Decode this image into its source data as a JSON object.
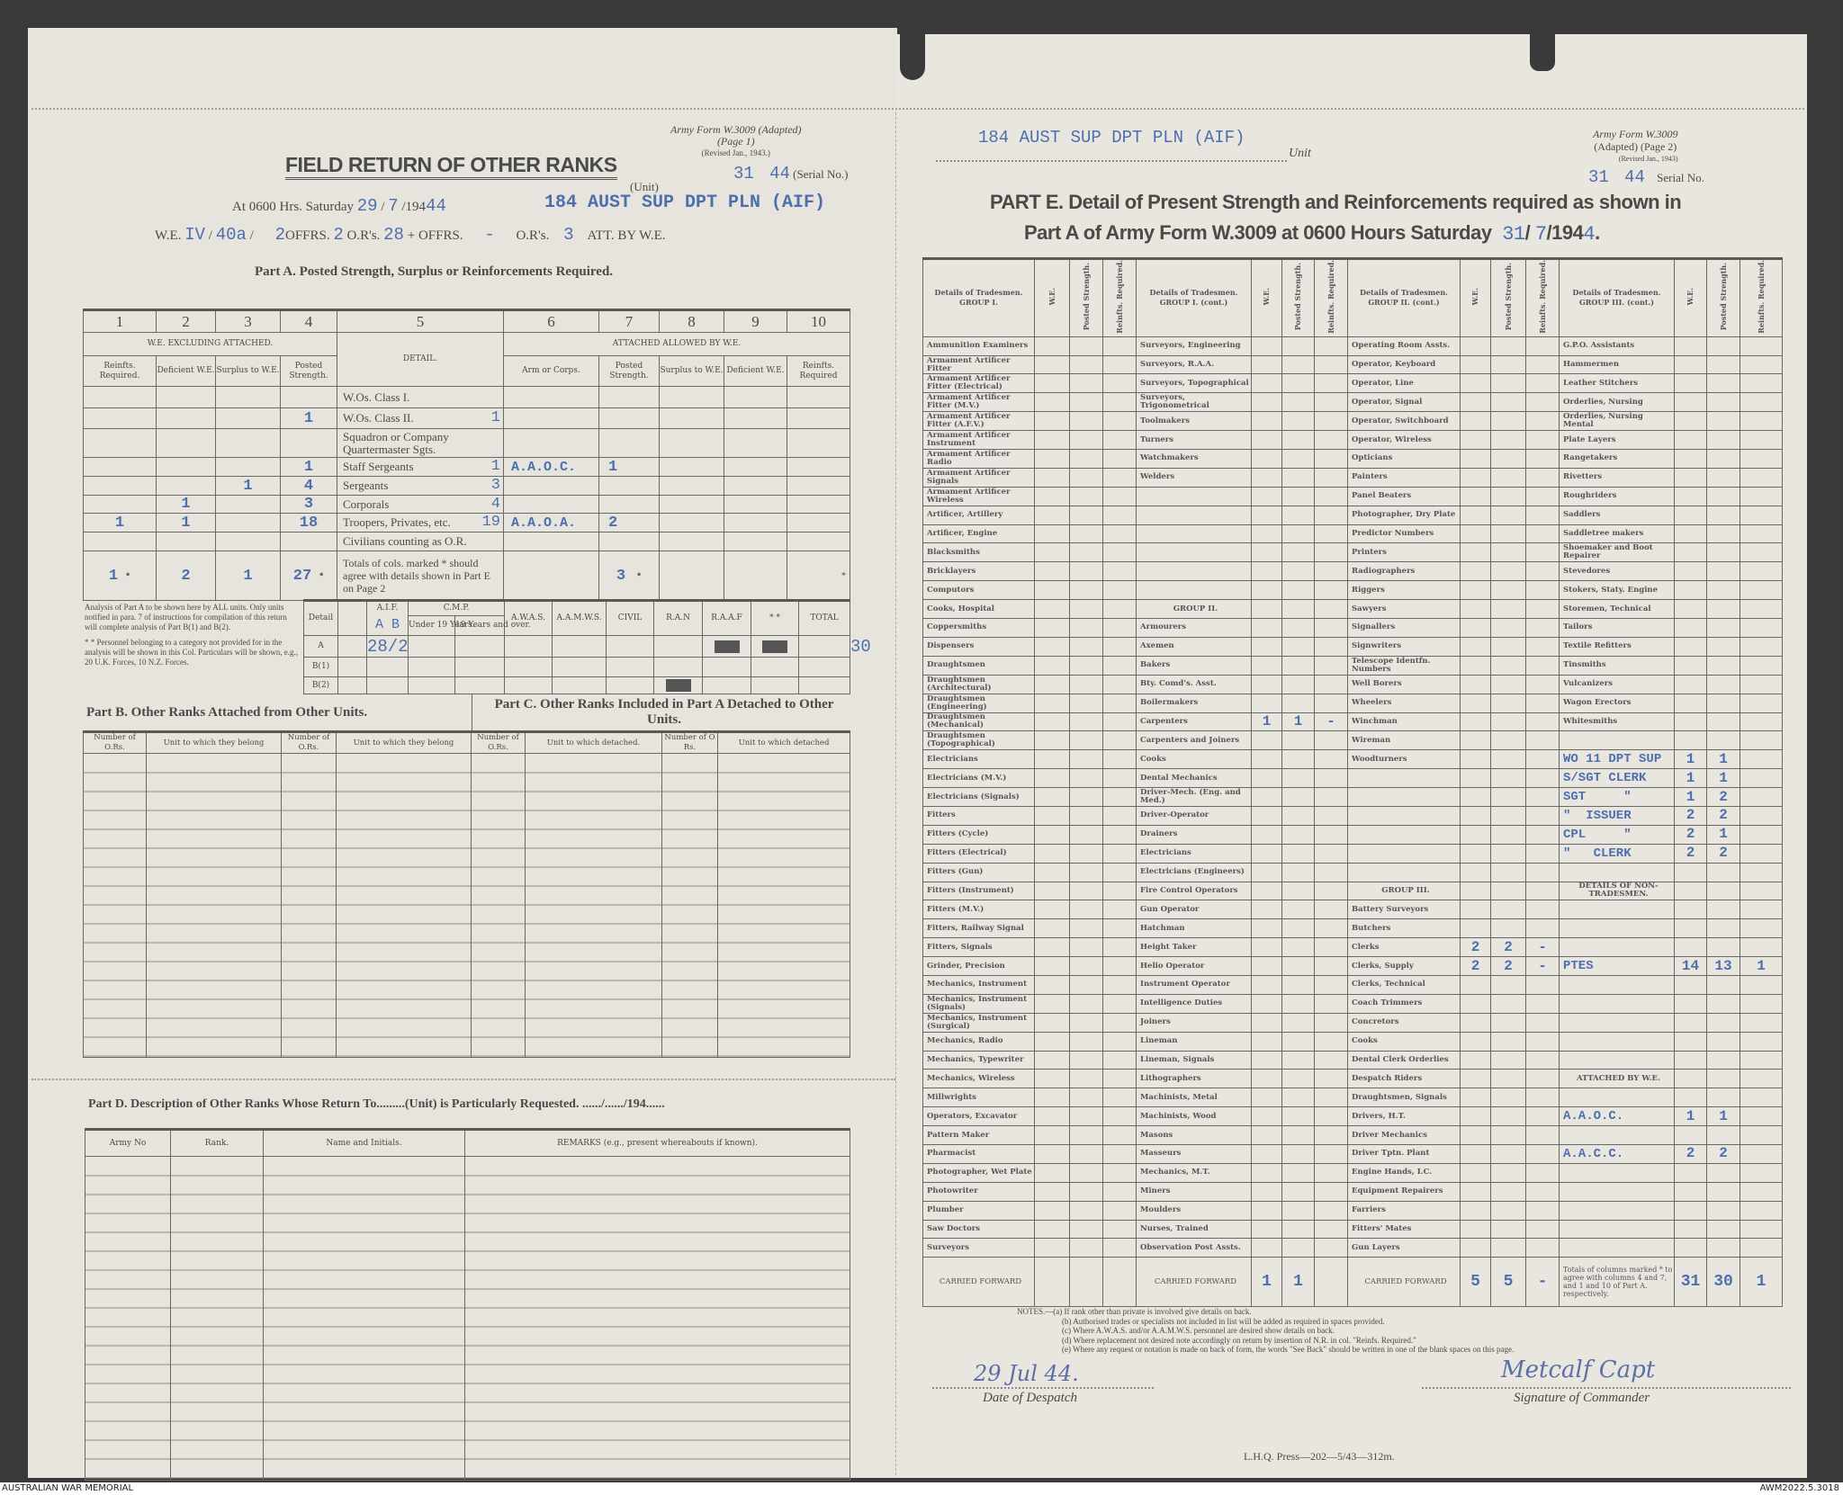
{
  "footer": {
    "left": "AUSTRALIAN WAR MEMORIAL",
    "right": "AWM2022.5.3018"
  },
  "left_page": {
    "form_id": [
      "Army Form W.3009 (Adapted)",
      "(Page 1)",
      "(Revised Jan., 1943.)"
    ],
    "serial": {
      "value": "31",
      "year": "44",
      "label": "(Serial No.)"
    },
    "title": "FIELD RETURN OF OTHER RANKS",
    "date_line": {
      "prefix": "At 0600 Hrs. Saturday",
      "day": "29",
      "month": "7",
      "year_prefix": "/194",
      "year": "44",
      "unit": "184 AUST SUP DPT PLN (AIF)",
      "unit_label": "(Unit)"
    },
    "we_line": {
      "prefix": "W.E.",
      "we1": "IV",
      "we2": "40a",
      "offrs_val": "2",
      "offrs": "OFFRS.",
      "offrs2": "2",
      "ors": "O.R's.",
      "ors_val": "28",
      "plus": "+",
      "offrs_label": "OFFRS.",
      "att_offrs": "-",
      "ors_label": "O.R's.",
      "att_ors": "3",
      "suffix": "ATT. BY W.E."
    },
    "part_a": {
      "heading": "Part A.  Posted Strength, Surplus or Reinforcements Required.",
      "col_numbers": [
        "1",
        "2",
        "3",
        "4",
        "5",
        "6",
        "7",
        "8",
        "9",
        "10"
      ],
      "we_header": "W.E. EXCLUDING ATTACHED.",
      "detail_header": "DETAIL.",
      "attached_header": "ATTACHED ALLOWED BY W.E.",
      "subheaders": [
        "Reinfts. Required.",
        "Deficient W.E.",
        "Surplus to W.E.",
        "Posted Strength.",
        "Arm or Corps.",
        "Posted Strength.",
        "Surplus to W.E.",
        "Deficient W.E.",
        "Reinfts. Required"
      ],
      "rows": [
        {
          "c1": "",
          "c2": "",
          "c3": "",
          "c4": "",
          "detail": "W.Os. Class I.",
          "hw": "",
          "c6": "",
          "c7": ""
        },
        {
          "c1": "",
          "c2": "",
          "c3": "",
          "c4": "1",
          "detail": "W.Os. Class II.",
          "hw": "1",
          "c6": "",
          "c7": ""
        },
        {
          "c1": "",
          "c2": "",
          "c3": "",
          "c4": "",
          "detail": "Squadron or Company Quartermaster Sgts.",
          "hw": "",
          "c6": "",
          "c7": ""
        },
        {
          "c1": "",
          "c2": "",
          "c3": "",
          "c4": "1",
          "detail": "Staff Sergeants",
          "hw": "1",
          "c6": "A.A.O.C.",
          "c7": "1"
        },
        {
          "c1": "",
          "c2": "",
          "c3": "1",
          "c4": "4",
          "detail": "Sergeants",
          "hw": "3",
          "c6": "",
          "c7": ""
        },
        {
          "c1": "",
          "c2": "1",
          "c3": "",
          "c4": "3",
          "detail": "Corporals",
          "hw": "4",
          "c6": "",
          "c7": ""
        },
        {
          "c1": "1",
          "c2": "1",
          "c3": "",
          "c4": "18",
          "detail": "Troopers, Privates, etc.",
          "hw": "19",
          "c6": "A.A.O.A.",
          "c7": "2"
        },
        {
          "c1": "",
          "c2": "",
          "c3": "",
          "c4": "",
          "detail": "Civilians counting as O.R.",
          "hw": "",
          "c6": "",
          "c7": ""
        }
      ],
      "totals": {
        "c1": "1",
        "c2": "2",
        "c3": "1",
        "c4": "27",
        "c7": "3",
        "mark": "*",
        "detail": "Totals of cols. marked * should agree with details shown in Part E on Page 2"
      }
    },
    "analysis": {
      "note": "Analysis of Part A to be shown here by ALL units. Only units notified in para. 7 of instructions for compilation of this return will complete analysis of Part B(1) and B(2).",
      "note2": "* * Personnel belonging to a category not provided for in the analysis will be shown in this Col. Particulars will be shown, e.g., 20 U.K. Forces, 10 N.Z. Forces.",
      "headers": {
        "detail": "Detail",
        "aif": "A.I.F.",
        "aif_hw": "A B",
        "cmp": "C.M.P.",
        "under19": "Under 19 Years.",
        "over19": "19 Years and over.",
        "awas": "A.W.A.S.",
        "aamws": "A.A.M.W.S.",
        "civil": "CIVIL",
        "ran": "R.A.N",
        "raaf": "R.A.A.F",
        "other": "* *",
        "total": "TOTAL"
      },
      "rows": [
        {
          "label": "A",
          "aif": "28/2",
          "total": "30"
        },
        {
          "label": "B(1)",
          "aif": "",
          "total": ""
        },
        {
          "label": "B(2)",
          "aif": "",
          "total": ""
        }
      ]
    },
    "part_b": {
      "heading": "Part B.  Other Ranks Attached from Other Units.",
      "cols": [
        "Number of O.Rs.",
        "Unit to which they belong",
        "Number of O.Rs.",
        "Unit to which they belong"
      ]
    },
    "part_c": {
      "heading": "Part C.  Other Ranks Included in Part A Detached to Other Units.",
      "cols": [
        "Number of O.Rs.",
        "Unit to which detached.",
        "Number of O Rs.",
        "Unit to which detached"
      ]
    },
    "part_d": {
      "heading": "Part D.  Description of Other Ranks Whose Return To.........(Unit) is Particularly Requested. ....../....../194......",
      "cols": [
        "Army No",
        "Rank.",
        "Name and Initials.",
        "REMARKS  (e.g.,  present  whereabouts  if  known)."
      ]
    }
  },
  "right_page": {
    "unit": "184 AUST SUP DPT PLN (AIF)",
    "unit_label": "Unit",
    "form_id": [
      "Army Form W.3009",
      "(Adapted) (Page 2)",
      "(Revised Jan., 1943)"
    ],
    "serial": {
      "value": "31",
      "year": "44",
      "label": "Serial No."
    },
    "heading1": "PART E.  Detail of Present Strength and Reinforcements required as shown in",
    "heading2": "Part A of Army Form W.3009 at 0600 Hours Saturday",
    "heading_day": "31",
    "heading_month": "7",
    "heading_year_prefix": "/194",
    "heading_year": "4",
    "col_we": "W.E.",
    "col_posted": "Posted Strength.",
    "col_reinf": "Reinfts. Required.",
    "groups": [
      "Details of Tradesmen. GROUP I.",
      "Details of Tradesmen. GROUP I. (cont.)",
      "Details of Tradesmen. GROUP II. (cont.)",
      "Details of Tradesmen. GROUP III. (cont.)"
    ],
    "columns": [
      [
        "Ammunition Examiners",
        "Armament Artificer Fitter",
        "Armament Artificer Fitter (Electrical)",
        "Armament Artificer Fitter (M.V.)",
        "Armament Artificer Fitter (A.F.V.)",
        "Armament Artificer Instrument",
        "Armament Artificer Radio",
        "Armament Artificer Signals",
        "Armament Artificer Wireless",
        "Artificer, Artillery",
        "Artificer, Engine",
        "Blacksmiths",
        "Bricklayers",
        "Computors",
        "Cooks, Hospital",
        "Coppersmiths",
        "Dispensers",
        "Draughtsmen",
        "Draughtsmen (Architectural)",
        "Draughtsmen (Engineering)",
        "Draughtsmen (Mechanical)",
        "Draughtsmen (Topographical)",
        "Electricians",
        "Electricians (M.V.)",
        "Electricians (Signals)",
        "Fitters",
        "Fitters (Cycle)",
        "Fitters (Electrical)",
        "Fitters (Gun)",
        "Fitters (Instrument)",
        "Fitters (M.V.)",
        "Fitters, Railway Signal",
        "Fitters, Signals",
        "Grinder, Precision",
        "Mechanics, Instrument",
        "Mechanics, Instrument (Signals)",
        "Mechanics, Instrument (Surgical)",
        "Mechanics, Radio",
        "Mechanics, Typewriter",
        "Mechanics, Wireless",
        "Millwrights",
        "Operators, Excavator",
        "Pattern Maker",
        "Pharmacist",
        "Photographer, Wet Plate",
        "Photowriter",
        "Plumber",
        "Saw Doctors",
        "Surveyors"
      ],
      [
        "Surveyors, Engineering",
        "Surveyors, R.A.A.",
        "Surveyors, Topographical",
        "Surveyors, Trigonometrical",
        "Toolmakers",
        "Turners",
        "Watchmakers",
        "Welders",
        "",
        "",
        "",
        "",
        "",
        "",
        "GROUP II.",
        "Armourers",
        "Axemen",
        "Bakers",
        "Bty. Comd's. Asst.",
        "Boilermakers",
        "Carpenters",
        "Carpenters and Joiners",
        "Cooks",
        "Dental Mechanics",
        "Driver-Mech. (Eng. and Med.)",
        "Driver-Operator",
        "Drainers",
        "Electricians",
        "Electricians (Engineers)",
        "Fire Control Operators",
        "Gun Operator",
        "Hatchman",
        "Height Taker",
        "Helio Operator",
        "Instrument Operator",
        "Intelligence Duties",
        "Joiners",
        "Lineman",
        "Lineman, Signals",
        "Lithographers",
        "Machinists, Metal",
        "Machinists, Wood",
        "Masons",
        "Masseurs",
        "Mechanics, M.T.",
        "Miners",
        "Moulders",
        "Nurses, Trained",
        "Observation Post Assts."
      ],
      [
        "Operating Room Assts.",
        "Operator, Keyboard",
        "Operator, Line",
        "Operator, Signal",
        "Operator, Switchboard",
        "Operator, Wireless",
        "Opticians",
        "Painters",
        "Panel Beaters",
        "Photographer, Dry Plate",
        "Predictor Numbers",
        "Printers",
        "Radiographers",
        "Riggers",
        "Sawyers",
        "Signallers",
        "Signwriters",
        "Telescope Identfn. Numbers",
        "Well Borers",
        "Wheelers",
        "Winchman",
        "Wireman",
        "Woodturners",
        "",
        "",
        "",
        "",
        "",
        "",
        "GROUP III.",
        "Battery Surveyors",
        "Butchers",
        "Clerks",
        "Clerks, Supply",
        "Clerks, Technical",
        "Coach Trimmers",
        "Concretors",
        "Cooks",
        "Dental Clerk Orderlies",
        "Despatch Riders",
        "Draughtsmen, Signals",
        "Drivers, H.T.",
        "Driver Mechanics",
        "Driver Tptn. Plant",
        "Engine Hands, I.C.",
        "Equipment Repairers",
        "Farriers",
        "Fitters' Mates",
        "Gun Layers"
      ],
      [
        "G.P.O. Assistants",
        "Hammermen",
        "Leather Stitchers",
        "Orderlies, Nursing",
        "Orderlies, Nursing Mental",
        "Plate Layers",
        "Rangetakers",
        "Rivetters",
        "Roughriders",
        "Saddlers",
        "Saddletree makers",
        "Shoemaker and Boot Repairer",
        "Stevedores",
        "Stokers, Staty. Engine",
        "Storemen, Technical",
        "Tailors",
        "Textile Refitters",
        "Tinsmiths",
        "Vulcanizers",
        "Wagon Erectors",
        "Whitesmiths",
        "",
        "",
        "",
        "",
        "",
        "",
        "",
        "",
        "DETAILS OF NON-TRADESMEN.",
        "",
        "",
        "",
        "",
        "",
        "",
        "",
        "",
        "",
        "ATTACHED BY W.E.",
        "",
        "",
        "",
        "",
        "",
        "",
        "",
        "",
        ""
      ]
    ],
    "entries": [
      {
        "col": 1,
        "row": 20,
        "we": "1",
        "posted": "1",
        "reinf": "-"
      },
      {
        "col": 2,
        "row": 32,
        "we": "2",
        "posted": "2",
        "reinf": "-"
      },
      {
        "col": 2,
        "row": 33,
        "we": "2",
        "posted": "2",
        "reinf": "-"
      },
      {
        "col": 3,
        "row": 22,
        "typed": "WO 11 DPT SUP",
        "we": "1",
        "posted": "1",
        "reinf": ""
      },
      {
        "col": 3,
        "row": 23,
        "typed": "S/SGT CLERK",
        "we": "1",
        "posted": "1",
        "reinf": ""
      },
      {
        "col": 3,
        "row": 24,
        "typed": "SGT     \"",
        "we": "1",
        "posted": "2",
        "reinf": ""
      },
      {
        "col": 3,
        "row": 25,
        "typed": "\"  ISSUER",
        "we": "2",
        "posted": "2",
        "reinf": ""
      },
      {
        "col": 3,
        "row": 26,
        "typed": "CPL     \"",
        "we": "2",
        "posted": "1",
        "reinf": ""
      },
      {
        "col": 3,
        "row": 27,
        "typed": "\"   CLERK",
        "we": "2",
        "posted": "2",
        "reinf": ""
      },
      {
        "col": 3,
        "row": 33,
        "typed": "PTES",
        "we": "14",
        "posted": "13",
        "reinf": "1"
      },
      {
        "col": 3,
        "row": 41,
        "typed": "A.A.O.C.",
        "we": "1",
        "posted": "1",
        "reinf": ""
      },
      {
        "col": 3,
        "row": 43,
        "typed": "A.A.C.C.",
        "we": "2",
        "posted": "2",
        "reinf": ""
      }
    ],
    "carried_forward_label": "CARRIED FORWARD",
    "carried": [
      {
        "we": "",
        "posted": "",
        "reinf": ""
      },
      {
        "we": "1",
        "posted": "1",
        "reinf": ""
      },
      {
        "we": "5",
        "posted": "5",
        "reinf": "-"
      },
      {
        "we": "31",
        "posted": "30",
        "reinf": "1"
      }
    ],
    "totals_note": "Totals of columns marked * to agree with columns 4 and 7, and 1 and 10 of Part A. respectively.",
    "notes": [
      "NOTES.—(a) If rank other than private is involved give details on back.",
      "(b) Authorised trades or specialists not included in list will be added as required in spaces provided.",
      "(c) Where A.W.A.S. and/or A.A.M.W.S. personnel are desired show details on back.",
      "(d) Where replacement not desired note accordingly on return by insertion of N.R. in col. \"Reinfs. Required.\"",
      "(e) Where any request or notation is made on back of form, the words \"See Back\" should be written in one of the blank spaces on this page."
    ],
    "despatch_date": "29 Jul 44.",
    "despatch_label": "Date of Despatch",
    "signature": "Metcalf Capt",
    "signature_label": "Signature of Commander",
    "printer": "L.H.Q.  Press—202—5/43—312m."
  }
}
